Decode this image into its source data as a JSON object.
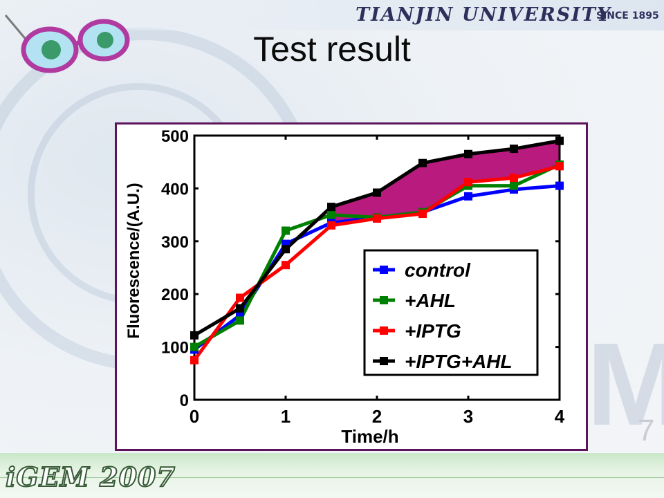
{
  "header": {
    "university": "TIANJIN UNIVERSITY",
    "since": "SINCE 1895"
  },
  "slide": {
    "title": "Test result",
    "page_number": "7"
  },
  "footer": {
    "logo_text": "iGEM 2007"
  },
  "colors": {
    "frame": "#5c145c",
    "highlight_fill": "#b81a7e",
    "control": "#0000ff",
    "ahl": "#008000",
    "iptg": "#ff0000",
    "iptg_ahl": "#000000"
  },
  "chart_data": {
    "type": "line",
    "xlabel": "Time/h",
    "ylabel": "Fluorescence/(A.U.)",
    "xlim": [
      0,
      4
    ],
    "ylim": [
      0,
      500
    ],
    "x_ticks": [
      "0",
      "1",
      "2",
      "3",
      "4"
    ],
    "y_ticks": [
      "0",
      "100",
      "200",
      "300",
      "400",
      "500"
    ],
    "x": [
      0,
      0.5,
      1,
      1.5,
      2,
      2.5,
      3,
      3.5,
      4
    ],
    "series": [
      {
        "name": "control",
        "color": "#0000ff",
        "values": [
          95,
          160,
          295,
          335,
          345,
          355,
          385,
          398,
          405
        ]
      },
      {
        "name": "+AHL",
        "color": "#008000",
        "values": [
          100,
          150,
          320,
          350,
          345,
          355,
          405,
          405,
          445
        ]
      },
      {
        "name": "+IPTG",
        "color": "#ff0000",
        "values": [
          75,
          193,
          255,
          330,
          343,
          352,
          412,
          420,
          442
        ]
      },
      {
        "name": "+IPTG+AHL",
        "color": "#000000",
        "values": [
          122,
          173,
          285,
          365,
          392,
          448,
          465,
          475,
          490
        ]
      }
    ],
    "shaded_region": {
      "between": [
        "+IPTG",
        "+IPTG+AHL"
      ],
      "x_from": 1.5,
      "x_to": 4,
      "color": "#b81a7e"
    },
    "legend_position": "bottom-right",
    "grid": false
  }
}
